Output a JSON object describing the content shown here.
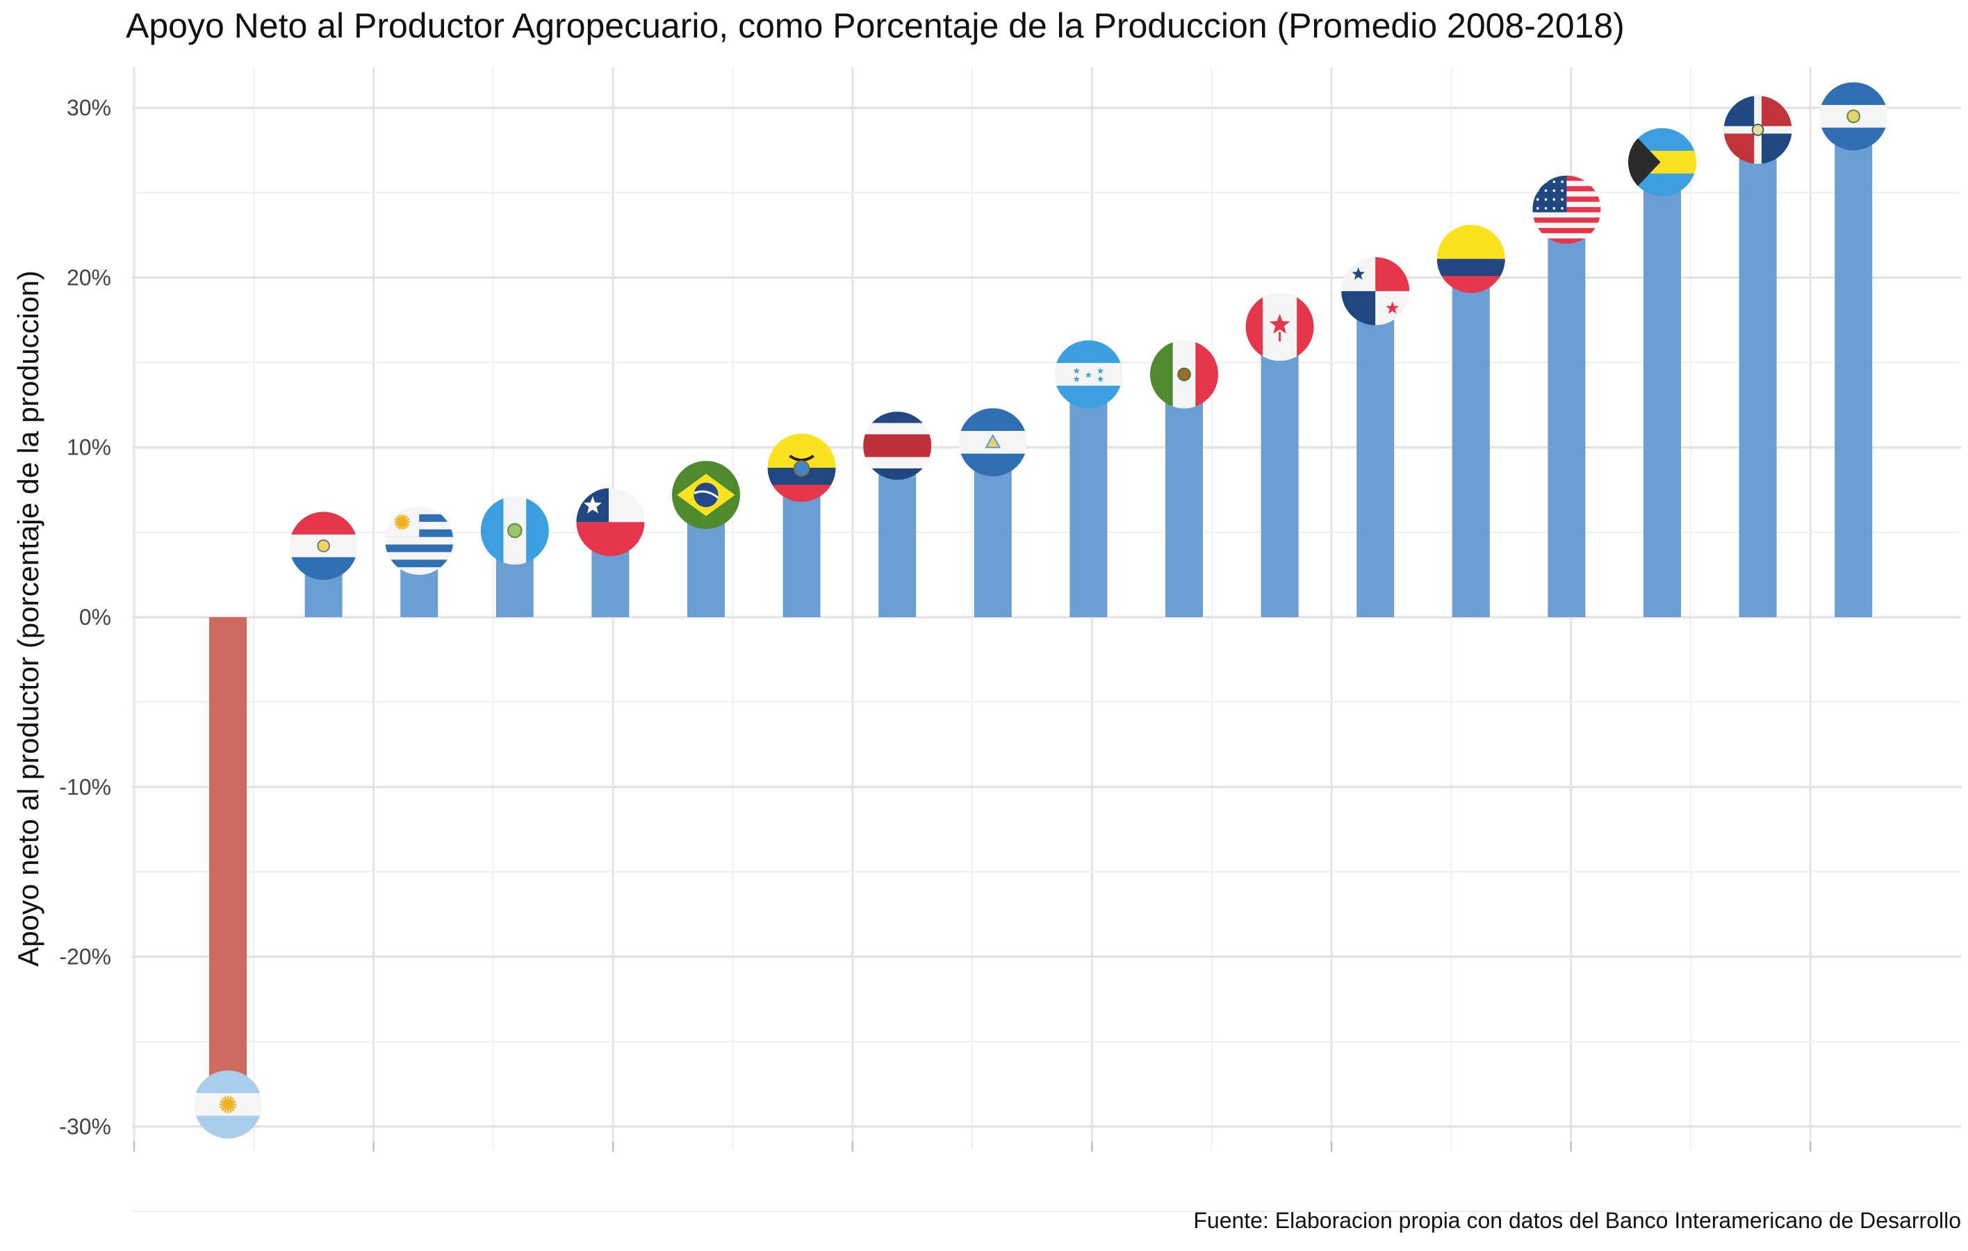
{
  "chart_data": {
    "type": "bar",
    "title": "Apoyo Neto al Productor Agropecuario, como Porcentaje de la Produccion (Promedio 2008-2018)",
    "ylabel": "Apoyo neto al productor (porcentaje de la produccion)",
    "xlabel": "",
    "caption": "Fuente: Elaboracion propia con datos del Banco Interamericano de Desarrollo",
    "ylim": [
      -31,
      32
    ],
    "y_ticks": [
      30,
      20,
      10,
      0,
      -10,
      -20,
      -30
    ],
    "y_tick_labels": [
      "30%",
      "20%",
      "10%",
      "0%",
      "-10%",
      "-20%",
      "-30%"
    ],
    "grid": true,
    "legend": "none",
    "categories": [
      "argentina",
      "paraguay",
      "uruguay",
      "guatemala",
      "chile",
      "brasil",
      "ecuador",
      "costa-rica",
      "nicaragua",
      "honduras",
      "mexico",
      "canada",
      "panama",
      "colombia",
      "estados-unidos",
      "bahamas",
      "republica-dominicana",
      "el-salvador"
    ],
    "values": [
      -28.7,
      4.2,
      4.5,
      5.1,
      5.6,
      7.2,
      8.8,
      10.1,
      10.3,
      14.3,
      14.3,
      17.1,
      19.2,
      21.1,
      24.0,
      26.8,
      28.7,
      29.5
    ],
    "colors": {
      "positive": "#6b9ed2",
      "negative": "#cd6b5f",
      "grid_major": "#e3e3e3",
      "grid_minor": "#efefef"
    }
  }
}
